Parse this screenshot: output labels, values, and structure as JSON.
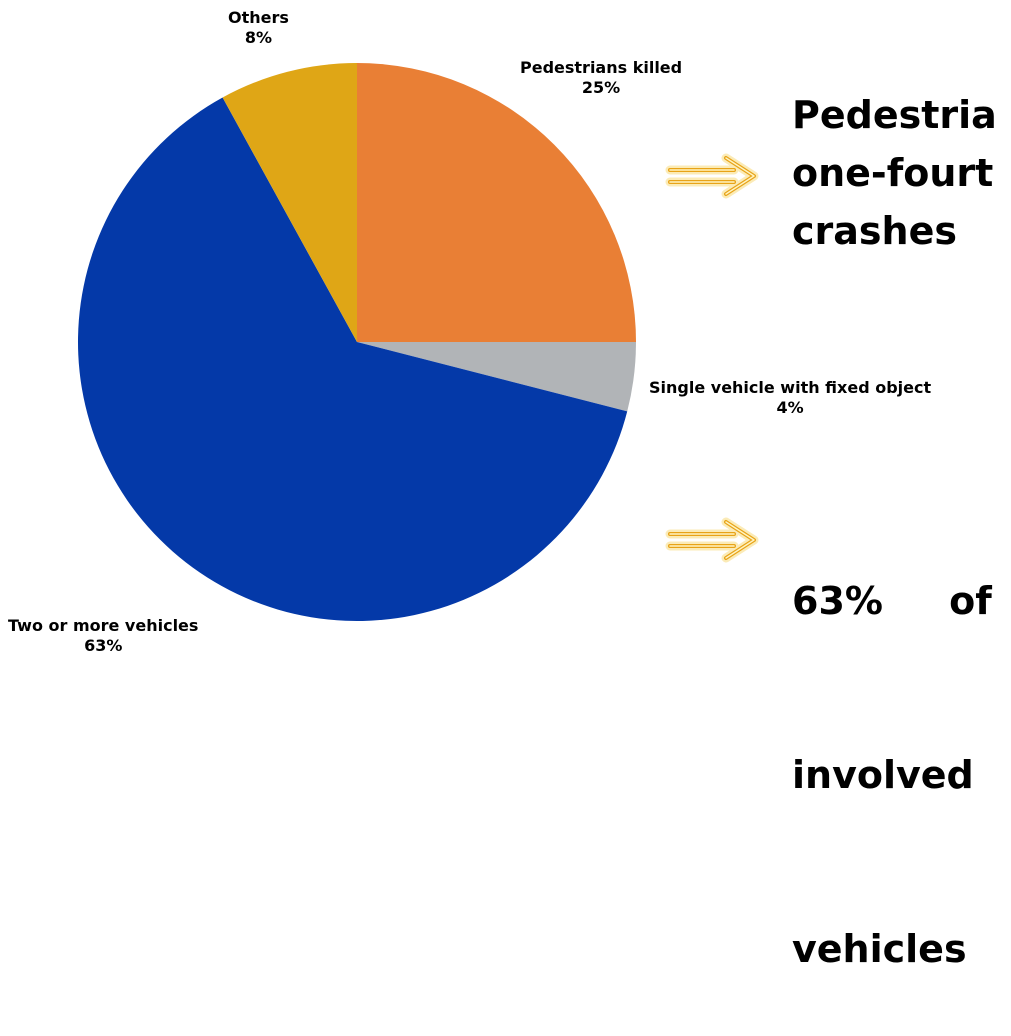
{
  "chart_data": {
    "type": "pie",
    "slices": [
      {
        "name": "Pedestrians killed",
        "value": 25,
        "label": "25%",
        "color": "#E97F35"
      },
      {
        "name": "Single vehicle with fixed object",
        "value": 4,
        "label": "4%",
        "color": "#B1B4B7"
      },
      {
        "name": "Two or more vehicles",
        "value": 63,
        "label": "63%",
        "color": "#0439A8"
      },
      {
        "name": "Others",
        "value": 8,
        "label": "8%",
        "color": "#DFA616"
      }
    ]
  },
  "callouts": [
    {
      "lines": [
        "Pedestria",
        "one-fourt",
        "crashes"
      ]
    },
    {
      "lines": [
        "63%     of",
        "involved",
        "vehicles"
      ]
    }
  ],
  "arrow_color": "#F3C531"
}
